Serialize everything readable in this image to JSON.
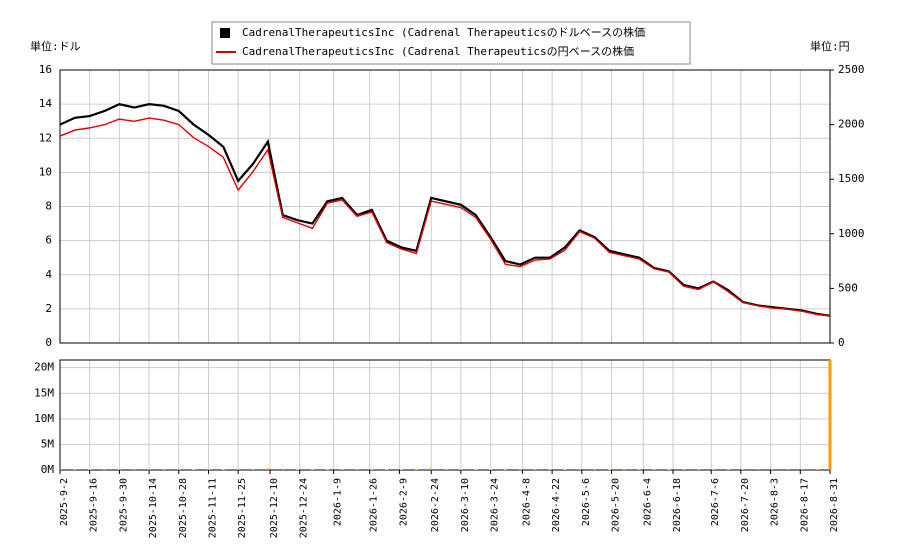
{
  "chart_data": [
    {
      "type": "line",
      "y_unit_label": "単位:ドル",
      "y2_unit_label": "単位:円",
      "x": [
        "2025-9-2",
        "2025-9-9",
        "2025-9-16",
        "2025-9-23",
        "2025-9-30",
        "2025-10-7",
        "2025-10-14",
        "2025-10-21",
        "2025-10-28",
        "2025-11-4",
        "2025-11-11",
        "2025-11-18",
        "2025-11-25",
        "2025-12-2",
        "2025-12-9",
        "2025-12-16",
        "2025-12-23",
        "2025-12-30",
        "2026-1-6",
        "2026-1-13",
        "2026-1-20",
        "2026-1-27",
        "2026-2-3",
        "2026-2-10",
        "2026-2-17",
        "2026-2-24",
        "2026-3-3",
        "2026-3-10",
        "2026-3-17",
        "2026-3-24",
        "2026-3-31",
        "2026-4-7",
        "2026-4-14",
        "2026-4-21",
        "2026-4-28",
        "2026-5-5",
        "2026-5-12",
        "2026-5-19",
        "2026-5-26",
        "2026-6-2",
        "2026-6-9",
        "2026-6-16",
        "2026-6-23",
        "2026-6-30",
        "2026-7-7",
        "2026-7-14",
        "2026-7-21",
        "2026-7-28",
        "2026-8-4",
        "2026-8-11",
        "2026-8-18",
        "2026-8-25",
        "2026-8-31"
      ],
      "series": [
        {
          "name": "CadrenalTherapeuticsInc (Cadrenal Therapeuticsのドルベースの株価",
          "color": "#000000",
          "marker": "square",
          "values": [
            12.8,
            13.2,
            13.3,
            13.6,
            14.0,
            13.8,
            14.0,
            13.9,
            13.6,
            12.8,
            12.2,
            11.5,
            9.5,
            10.5,
            11.8,
            7.5,
            7.2,
            7.0,
            8.3,
            8.5,
            7.5,
            7.8,
            6.0,
            5.6,
            5.4,
            8.5,
            8.3,
            8.1,
            7.5,
            6.2,
            4.8,
            4.6,
            5.0,
            5.0,
            5.6,
            6.6,
            6.2,
            5.4,
            5.2,
            5.0,
            4.4,
            4.2,
            3.4,
            3.2,
            3.6,
            3.1,
            2.4,
            2.2,
            2.1,
            2.0,
            1.9,
            1.7,
            1.6
          ]
        },
        {
          "name": "CadrenalTherapeuticsInc (Cadrenal Therapeuticsの円ベースの株価",
          "color": "#dd0000",
          "marker": "line",
          "axis": "y2",
          "values": [
            1895,
            1950,
            1970,
            2000,
            2050,
            2030,
            2060,
            2040,
            2000,
            1880,
            1800,
            1700,
            1400,
            1570,
            1770,
            1150,
            1100,
            1050,
            1280,
            1310,
            1160,
            1200,
            920,
            860,
            820,
            1300,
            1270,
            1240,
            1150,
            950,
            720,
            700,
            760,
            770,
            850,
            1020,
            960,
            830,
            800,
            770,
            680,
            650,
            520,
            490,
            560,
            470,
            370,
            340,
            320,
            310,
            290,
            260,
            250
          ]
        }
      ],
      "ylim": [
        0,
        16
      ],
      "yticks": [
        0,
        2,
        4,
        6,
        8,
        10,
        12,
        14,
        16
      ],
      "y2lim": [
        0,
        2500
      ],
      "y2ticks": [
        0,
        500,
        1000,
        1500,
        2000,
        2500
      ],
      "grid": true,
      "legend": "top"
    },
    {
      "type": "bar",
      "color": "#ff9900",
      "x": [
        "2025-9-2",
        "2025-9-9",
        "2025-9-16",
        "2025-9-23",
        "2025-9-30",
        "2025-10-7",
        "2025-10-14",
        "2025-10-21",
        "2025-10-28",
        "2025-11-4",
        "2025-11-11",
        "2025-11-18",
        "2025-11-25",
        "2025-12-2",
        "2025-12-9",
        "2025-12-16",
        "2025-12-23",
        "2025-12-30",
        "2026-1-6",
        "2026-1-13",
        "2026-1-20",
        "2026-1-27",
        "2026-2-3",
        "2026-2-10",
        "2026-2-17",
        "2026-2-24",
        "2026-3-3",
        "2026-3-10",
        "2026-3-17",
        "2026-3-24",
        "2026-3-31",
        "2026-4-7",
        "2026-4-14",
        "2026-4-21",
        "2026-4-28",
        "2026-5-5",
        "2026-5-12",
        "2026-5-19",
        "2026-5-26",
        "2026-6-2",
        "2026-6-9",
        "2026-6-16",
        "2026-6-23",
        "2026-6-30",
        "2026-7-7",
        "2026-7-14",
        "2026-7-21",
        "2026-7-28",
        "2026-8-4",
        "2026-8-11",
        "2026-8-18",
        "2026-8-25",
        "2026-8-31"
      ],
      "values": [
        100000,
        80000,
        90000,
        70000,
        80000,
        60000,
        70000,
        60000,
        80000,
        90000,
        70000,
        100000,
        200000,
        150000,
        300000,
        250000,
        120000,
        90000,
        100000,
        80000,
        70000,
        80000,
        100000,
        90000,
        100000,
        300000,
        150000,
        100000,
        90000,
        100000,
        120000,
        80000,
        90000,
        80000,
        100000,
        200000,
        150000,
        100000,
        80000,
        90000,
        80000,
        90000,
        70000,
        80000,
        150000,
        90000,
        60000,
        50000,
        50000,
        40000,
        50000,
        60000,
        21500000
      ],
      "ylim": [
        0,
        21500000
      ],
      "yticks": [
        {
          "value": 0,
          "label": "0M"
        },
        {
          "value": 5000000,
          "label": "5M"
        },
        {
          "value": 10000000,
          "label": "10M"
        },
        {
          "value": 15000000,
          "label": "15M"
        },
        {
          "value": 20000000,
          "label": "20M"
        }
      ],
      "xticks": [
        "2025-9-2",
        "2025-9-16",
        "2025-9-30",
        "2025-10-14",
        "2025-10-28",
        "2025-11-11",
        "2025-11-25",
        "2025-12-10",
        "2025-12-24",
        "2026-1-9",
        "2026-1-26",
        "2026-2-9",
        "2026-2-24",
        "2026-3-10",
        "2026-3-24",
        "2026-4-8",
        "2026-4-22",
        "2026-5-6",
        "2026-5-20",
        "2026-6-4",
        "2026-6-18",
        "2026-7-6",
        "2026-7-20",
        "2026-8-3",
        "2026-8-17",
        "2026-8-31"
      ],
      "grid": true
    }
  ]
}
